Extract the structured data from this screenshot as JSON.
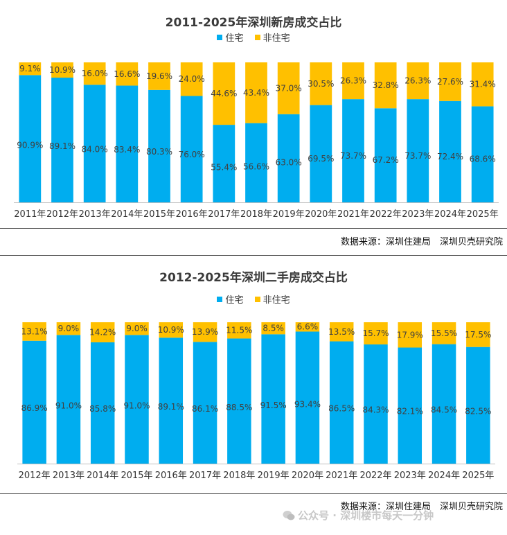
{
  "colors": {
    "residential": "#00ADEF",
    "nonresidential": "#FFC000",
    "axis": "#BFBFBF",
    "label": "#404040"
  },
  "legend": {
    "residential": "住宅",
    "nonresidential": "非住宅"
  },
  "panel1": {
    "source": "数据来源：深圳住建局　深圳贝壳研究院"
  },
  "panel2": {
    "source": "数据来源：深圳住建局　深圳贝壳研究院"
  },
  "watermark": {
    "text": "公众号 · 深圳楼市每天一分钟"
  },
  "chart_data": [
    {
      "type": "bar",
      "stacked": true,
      "title": "2011-2025年深圳新房成交占比",
      "categories": [
        "2011年",
        "2012年",
        "2013年",
        "2014年",
        "2015年",
        "2016年",
        "2017年",
        "2018年",
        "2019年",
        "2020年",
        "2021年",
        "2022年",
        "2023年",
        "2024年",
        "2025年"
      ],
      "series": [
        {
          "name": "住宅",
          "values": [
            90.9,
            89.1,
            84.0,
            83.4,
            80.3,
            76.0,
            55.4,
            56.6,
            63.0,
            69.5,
            73.7,
            67.2,
            73.7,
            72.4,
            68.6
          ]
        },
        {
          "name": "非住宅",
          "values": [
            9.1,
            10.9,
            16.0,
            16.6,
            19.6,
            24.0,
            44.6,
            43.4,
            37.0,
            30.5,
            26.3,
            32.8,
            26.3,
            27.6,
            31.4
          ]
        }
      ],
      "ylim": [
        0,
        100
      ],
      "unit": "%"
    },
    {
      "type": "bar",
      "stacked": true,
      "title": "2012-2025年深圳二手房成交占比",
      "categories": [
        "2012年",
        "2013年",
        "2014年",
        "2015年",
        "2016年",
        "2017年",
        "2018年",
        "2019年",
        "2020年",
        "2021年",
        "2022年",
        "2023年",
        "2024年",
        "2025年"
      ],
      "series": [
        {
          "name": "住宅",
          "values": [
            86.9,
            91.0,
            85.8,
            91.0,
            89.1,
            86.1,
            88.5,
            91.5,
            93.4,
            86.5,
            84.3,
            82.1,
            84.5,
            82.5
          ]
        },
        {
          "name": "非住宅",
          "values": [
            13.1,
            9.0,
            14.2,
            9.0,
            10.9,
            13.9,
            11.5,
            8.5,
            6.6,
            13.5,
            15.7,
            17.9,
            15.5,
            17.5
          ]
        }
      ],
      "ylim": [
        0,
        100
      ],
      "unit": "%"
    }
  ]
}
